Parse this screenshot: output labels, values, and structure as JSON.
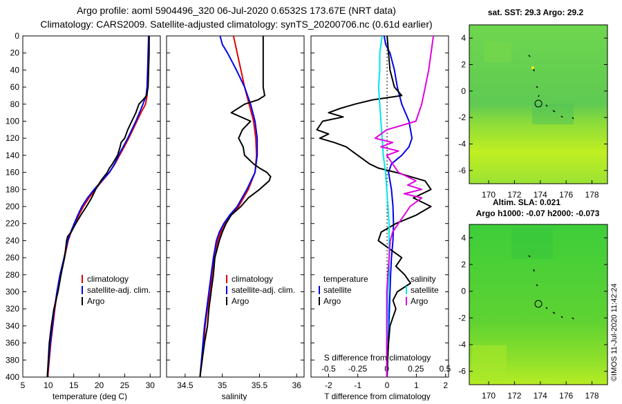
{
  "title": {
    "line1": "Argo profile: aoml 5904496_320 06-Jul-2020 0.6532S 173.67E (NRT data)",
    "line2": "Climatology: CARS2009. Satellite-adjusted climatology: synTS_20200706.nc (0.61d earlier)"
  },
  "colors": {
    "climatology": "#e00000",
    "satellite": "#0000ee",
    "argo": "#000000",
    "sat_salinity": "#00e5ee",
    "argo_sdiff": "#e000e0"
  },
  "depth_ticks": [
    "0",
    "20",
    "40",
    "60",
    "80",
    "100",
    "120",
    "140",
    "160",
    "180",
    "200",
    "220",
    "240",
    "260",
    "280",
    "300",
    "320",
    "340",
    "360",
    "380",
    "400"
  ],
  "panels": {
    "temperature": {
      "xlabel": "temperature (deg C)",
      "xticks": [
        "5",
        "10",
        "15",
        "20",
        "25",
        "30"
      ]
    },
    "salinity": {
      "xlabel": "salinity",
      "xticks": [
        "34.5",
        "35",
        "35.5",
        "36"
      ]
    },
    "difference": {
      "xlabel": "T difference from climatology",
      "xticks": [
        "-2",
        "-1",
        "0",
        "1",
        "2"
      ],
      "top_label": "S difference from climatology",
      "top_ticks": [
        "-0.5",
        "-0.25",
        "0",
        "0.25",
        "0.5"
      ]
    }
  },
  "legend": {
    "climatology": "climatology",
    "satellite_adj": "satellite-adj. clim.",
    "argo": "Argo"
  },
  "diff_legend": {
    "temperature": "temperature",
    "salinity": "salinity",
    "satellite": "satellite",
    "argo": "Argo"
  },
  "maps": {
    "top": {
      "title": "sat. SST: 29.3 Argo: 29.2",
      "caption": "Altim. SLA: 0.021"
    },
    "bottom": {
      "title": "Argo h1000: -0.07 h2000: -0.073"
    },
    "lon_ticks": [
      "170",
      "172",
      "174",
      "176",
      "178"
    ],
    "lat_ticks": [
      "4",
      "2",
      "0",
      "-2",
      "-4",
      "-6"
    ]
  },
  "credit": "©IMOS 11-Jul-2020 11:42:24",
  "chart_data": [
    {
      "type": "line",
      "title": "",
      "xlabel": "temperature (deg C)",
      "ylabel": "depth",
      "xlim": [
        5,
        32
      ],
      "ylim": [
        400,
        0
      ],
      "series": [
        {
          "name": "climatology",
          "depth": [
            0,
            20,
            40,
            60,
            70,
            80,
            90,
            100,
            110,
            120,
            130,
            140,
            150,
            160,
            170,
            180,
            190,
            200,
            210,
            220,
            230,
            240,
            260,
            280,
            300,
            320,
            340,
            360,
            380,
            400
          ],
          "values": [
            29.8,
            29.7,
            29.6,
            29.5,
            29.4,
            29.1,
            28.2,
            27.4,
            26.6,
            25.8,
            24.9,
            24,
            23.1,
            22,
            20.6,
            19.2,
            18,
            16.9,
            16,
            15.2,
            14.5,
            13.9,
            13.2,
            12.4,
            11.8,
            11.3,
            10.9,
            10.5,
            10.2,
            9.9
          ]
        },
        {
          "name": "satellite-adj. clim.",
          "depth": [
            0,
            20,
            40,
            60,
            70,
            80,
            90,
            100,
            110,
            120,
            130,
            140,
            150,
            160,
            170,
            180,
            190,
            200,
            210,
            220,
            230,
            240,
            260,
            280,
            300,
            320,
            340,
            360,
            380,
            400
          ],
          "values": [
            29.7,
            29.6,
            29.5,
            29.4,
            29.2,
            28.6,
            27.9,
            27.2,
            26.4,
            25.6,
            24.7,
            23.8,
            23,
            22,
            20.5,
            19,
            17.7,
            16.6,
            15.8,
            15.1,
            14.4,
            13.8,
            13.1,
            12.3,
            11.7,
            11.2,
            10.8,
            10.4,
            10.1,
            9.8
          ]
        },
        {
          "name": "Argo",
          "depth": [
            0,
            20,
            40,
            60,
            70,
            75,
            80,
            90,
            100,
            110,
            120,
            125,
            130,
            140,
            150,
            155,
            160,
            170,
            180,
            190,
            200,
            210,
            220,
            230,
            235,
            240,
            260,
            280,
            300,
            320,
            340,
            360,
            380,
            400
          ],
          "values": [
            29.8,
            29.8,
            29.7,
            29.6,
            29.3,
            28.6,
            27.8,
            27.2,
            26.4,
            25.6,
            25,
            24.3,
            24.1,
            23.6,
            22.6,
            22,
            21.6,
            20.3,
            19.3,
            18.5,
            17.5,
            16.4,
            15.4,
            14.5,
            13.8,
            13.6,
            13.2,
            12.5,
            11.9,
            11.1,
            10.6,
            10.2,
            10,
            9.8
          ]
        }
      ]
    },
    {
      "type": "line",
      "title": "",
      "xlabel": "salinity",
      "ylabel": "depth",
      "xlim": [
        34.25,
        36.1
      ],
      "ylim": [
        400,
        0
      ],
      "series": [
        {
          "name": "climatology",
          "depth": [
            0,
            20,
            40,
            60,
            80,
            100,
            120,
            140,
            160,
            180,
            200,
            210,
            220,
            230,
            240,
            260,
            280,
            300,
            320,
            340,
            360,
            380,
            400
          ],
          "values": [
            35.15,
            35.2,
            35.25,
            35.3,
            35.36,
            35.42,
            35.45,
            35.46,
            35.44,
            35.35,
            35.22,
            35.12,
            35.04,
            34.98,
            34.94,
            34.9,
            34.86,
            34.84,
            34.8,
            34.77,
            34.75,
            34.72,
            34.7
          ]
        },
        {
          "name": "satellite-adj. clim.",
          "depth": [
            0,
            10,
            20,
            40,
            60,
            80,
            100,
            120,
            140,
            160,
            180,
            200,
            210,
            220,
            230,
            240,
            260,
            280,
            300,
            320,
            340,
            360,
            380,
            400
          ],
          "values": [
            34.97,
            35.0,
            35.07,
            35.19,
            35.3,
            35.38,
            35.44,
            35.47,
            35.47,
            35.44,
            35.33,
            35.2,
            35.1,
            35.02,
            34.96,
            34.92,
            34.88,
            34.85,
            34.82,
            34.79,
            34.76,
            34.74,
            34.72,
            34.7
          ]
        },
        {
          "name": "Argo",
          "depth": [
            0,
            20,
            40,
            60,
            70,
            75,
            80,
            90,
            100,
            110,
            120,
            130,
            140,
            150,
            155,
            160,
            165,
            170,
            180,
            190,
            200,
            210,
            220,
            230,
            240,
            260,
            280,
            300,
            320,
            340,
            360,
            380,
            400
          ],
          "values": [
            35.55,
            35.55,
            35.55,
            35.55,
            35.57,
            35.48,
            35.3,
            35.12,
            35.38,
            35.27,
            35.22,
            35.28,
            35.3,
            35.42,
            35.5,
            35.6,
            35.65,
            35.63,
            35.5,
            35.35,
            35.25,
            35.12,
            35.05,
            35.0,
            34.96,
            34.9,
            34.88,
            34.85,
            34.82,
            34.8,
            34.76,
            34.73,
            34.7
          ]
        }
      ]
    },
    {
      "type": "line",
      "title": "",
      "xlabel": "T difference from climatology",
      "ylabel": "depth",
      "xlim": [
        -2.6,
        2.1
      ],
      "ylim": [
        400,
        0
      ],
      "x2_label": "S difference from climatology",
      "x2lim": [
        -0.65,
        0.53
      ],
      "series": [
        {
          "name": "temperature satellite",
          "axis": "T",
          "depth": [
            0,
            10,
            20,
            40,
            60,
            80,
            100,
            120,
            130,
            140,
            150,
            160,
            170,
            180,
            200,
            220,
            240,
            260,
            280,
            300,
            320,
            340,
            360,
            380,
            400
          ],
          "values": [
            -0.1,
            -0.05,
            0.1,
            0.25,
            0.35,
            0.5,
            0.75,
            0.85,
            0.75,
            0.5,
            0.15,
            0.05,
            0.1,
            0.15,
            0.2,
            0.22,
            0.2,
            0.15,
            0.12,
            0.1,
            0.08,
            0.06,
            0.04,
            0.02,
            0.0
          ]
        },
        {
          "name": "temperature Argo",
          "axis": "T",
          "depth": [
            0,
            20,
            40,
            60,
            70,
            75,
            80,
            85,
            90,
            95,
            100,
            110,
            115,
            120,
            125,
            130,
            140,
            150,
            155,
            160,
            165,
            170,
            180,
            190,
            200,
            210,
            220,
            230,
            240,
            250,
            260,
            270,
            280,
            290,
            300,
            310,
            320,
            340,
            360,
            380,
            400
          ],
          "values": [
            0,
            0.05,
            0.1,
            0.25,
            0.5,
            -0.5,
            -1.1,
            -1.6,
            -2.0,
            -1.5,
            -2.2,
            -2.4,
            -2.0,
            -2.3,
            -1.8,
            -1.4,
            -1.0,
            -0.6,
            -0.3,
            0.3,
            0.8,
            1.3,
            1.5,
            0.9,
            1.5,
            1.0,
            0.3,
            -0.2,
            -0.3,
            0.1,
            0.5,
            0.3,
            0.6,
            0.8,
            0.35,
            0.2,
            0.3,
            0.1,
            0.05,
            0.02,
            0.0
          ]
        },
        {
          "name": "salinity satellite",
          "axis": "S",
          "depth": [
            0,
            20,
            40,
            60,
            80,
            100,
            120,
            140,
            160,
            180,
            200,
            220,
            240,
            260,
            280,
            300,
            320,
            340,
            360,
            380,
            400
          ],
          "values": [
            -0.04,
            -0.06,
            -0.06,
            -0.07,
            -0.06,
            -0.05,
            -0.04,
            -0.03,
            -0.01,
            0.0,
            0.01,
            0.02,
            0.02,
            0.02,
            0.02,
            0.01,
            0.01,
            0.01,
            0.0,
            0.0,
            0.0
          ]
        },
        {
          "name": "salinity Argo",
          "axis": "S",
          "depth": [
            0,
            20,
            40,
            60,
            80,
            100,
            110,
            120,
            125,
            130,
            135,
            140,
            150,
            160,
            170,
            175,
            180,
            185,
            190,
            200,
            210,
            220,
            230,
            240,
            260,
            280,
            300,
            320,
            340,
            360,
            380,
            400
          ],
          "values": [
            0.4,
            0.38,
            0.36,
            0.33,
            0.3,
            0.25,
            0.0,
            -0.1,
            0.05,
            -0.05,
            0.1,
            0.0,
            0.05,
            0.1,
            0.25,
            0.18,
            0.3,
            0.15,
            0.3,
            0.2,
            0.15,
            0.1,
            0.05,
            0.03,
            0.02,
            0.01,
            0.0,
            0.0,
            0.0,
            0.0,
            0.0,
            0.0
          ]
        }
      ]
    }
  ]
}
